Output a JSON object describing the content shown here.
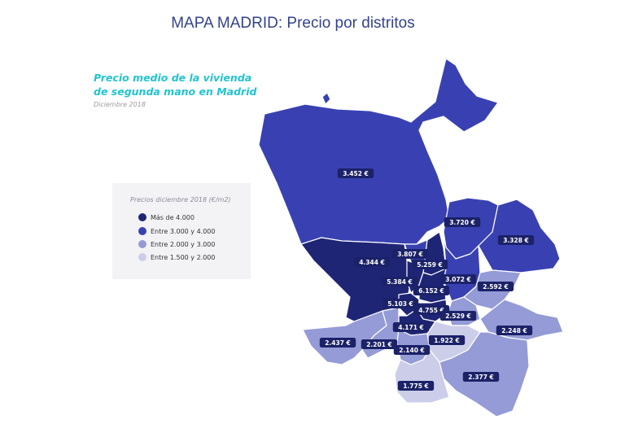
{
  "title": "MAPA MADRID: Precio por distritos",
  "subtitle_line1": "Precio medio de la vivienda",
  "subtitle_line2": "de segunda mano en Madrid",
  "date": "Diciembre 2018",
  "colors": {
    "very_high": "#1f2575",
    "high": "#3941b2",
    "mid": "#949bd6",
    "low": "#cbcde9",
    "title": "#33428f",
    "subtitle": "#22c4d0"
  },
  "legend": {
    "title": "Precios diciembre 2018 (€/m2)",
    "items": [
      {
        "label": "Más de 4.000",
        "level": "very_high"
      },
      {
        "label": "Entre 3.000 y 4.000",
        "level": "high"
      },
      {
        "label": "Entre 2.000 y 3.000",
        "level": "mid"
      },
      {
        "label": "Entre 1.500 y 2.000",
        "level": "low"
      }
    ]
  },
  "districts": [
    {
      "price": "3.452 €",
      "level": "high"
    },
    {
      "price": "3.720 €",
      "level": "high"
    },
    {
      "price": "3.328 €",
      "level": "high"
    },
    {
      "price": "4.344 €",
      "level": "very_high"
    },
    {
      "price": "3.807 €",
      "level": "high"
    },
    {
      "price": "5.259 €",
      "level": "very_high"
    },
    {
      "price": "3.072 €",
      "level": "high"
    },
    {
      "price": "5.384 €",
      "level": "very_high"
    },
    {
      "price": "6.152 €",
      "level": "very_high"
    },
    {
      "price": "2.592 €",
      "level": "mid"
    },
    {
      "price": "5.103 €",
      "level": "very_high"
    },
    {
      "price": "4.755 €",
      "level": "very_high"
    },
    {
      "price": "2.529 €",
      "level": "mid"
    },
    {
      "price": "4.171 €",
      "level": "very_high"
    },
    {
      "price": "2.248 €",
      "level": "mid"
    },
    {
      "price": "2.437 €",
      "level": "mid"
    },
    {
      "price": "2.201 €",
      "level": "mid"
    },
    {
      "price": "1.922 €",
      "level": "low"
    },
    {
      "price": "2.140 €",
      "level": "mid"
    },
    {
      "price": "2.377 €",
      "level": "mid"
    },
    {
      "price": "1.775 €",
      "level": "low"
    }
  ]
}
